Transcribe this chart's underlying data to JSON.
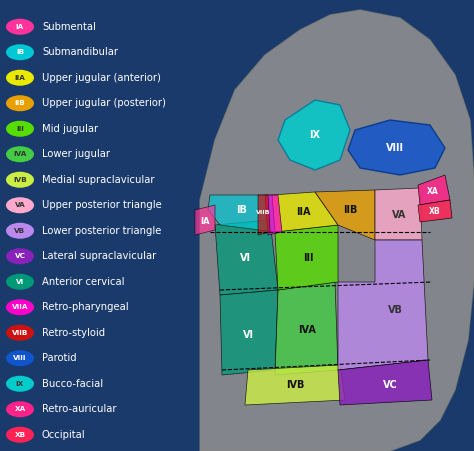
{
  "background_color": "#1a3a6b",
  "legend_items": [
    {
      "label": "IA",
      "name": "Submental",
      "color": "#ff3399",
      "text_color": "#ffffff"
    },
    {
      "label": "IB",
      "name": "Submandibular",
      "color": "#00c8d4",
      "text_color": "#ffffff"
    },
    {
      "label": "IIA",
      "name": "Upper jugular (anterior)",
      "color": "#e8e800",
      "text_color": "#333333"
    },
    {
      "label": "IIB",
      "name": "Upper jugular (posterior)",
      "color": "#e8a000",
      "text_color": "#ffffff"
    },
    {
      "label": "III",
      "name": "Mid jugular",
      "color": "#55dd00",
      "text_color": "#333333"
    },
    {
      "label": "IVA",
      "name": "Lower jugular",
      "color": "#44cc44",
      "text_color": "#333333"
    },
    {
      "label": "IVB",
      "name": "Medial supraclavicular",
      "color": "#ccee44",
      "text_color": "#333333"
    },
    {
      "label": "VA",
      "name": "Upper posterior triangle",
      "color": "#ffaacc",
      "text_color": "#333333"
    },
    {
      "label": "VB",
      "name": "Lower posterior triangle",
      "color": "#bb88ee",
      "text_color": "#333333"
    },
    {
      "label": "VC",
      "name": "Lateral supraclavicular",
      "color": "#8822bb",
      "text_color": "#ffffff"
    },
    {
      "label": "VI",
      "name": "Anterior cervical",
      "color": "#009977",
      "text_color": "#ffffff"
    },
    {
      "label": "VIIA",
      "name": "Retro-pharyngeal",
      "color": "#ff00cc",
      "text_color": "#ffffff"
    },
    {
      "label": "VIIB",
      "name": "Retro-styloid",
      "color": "#cc1111",
      "text_color": "#ffffff"
    },
    {
      "label": "VIII",
      "name": "Parotid",
      "color": "#1155cc",
      "text_color": "#ffffff"
    },
    {
      "label": "IX",
      "name": "Bucco-facial",
      "color": "#00cccc",
      "text_color": "#333333"
    },
    {
      "label": "XA",
      "name": "Retro-auricular",
      "color": "#ff2288",
      "text_color": "#ffffff"
    },
    {
      "label": "XB",
      "name": "Occipital",
      "color": "#ff2255",
      "text_color": "#ffffff"
    }
  ],
  "figsize": [
    4.74,
    4.51
  ],
  "dpi": 100,
  "badge_fontsize": 5.2,
  "name_fontsize": 7.2,
  "text_white": "#ffffff"
}
